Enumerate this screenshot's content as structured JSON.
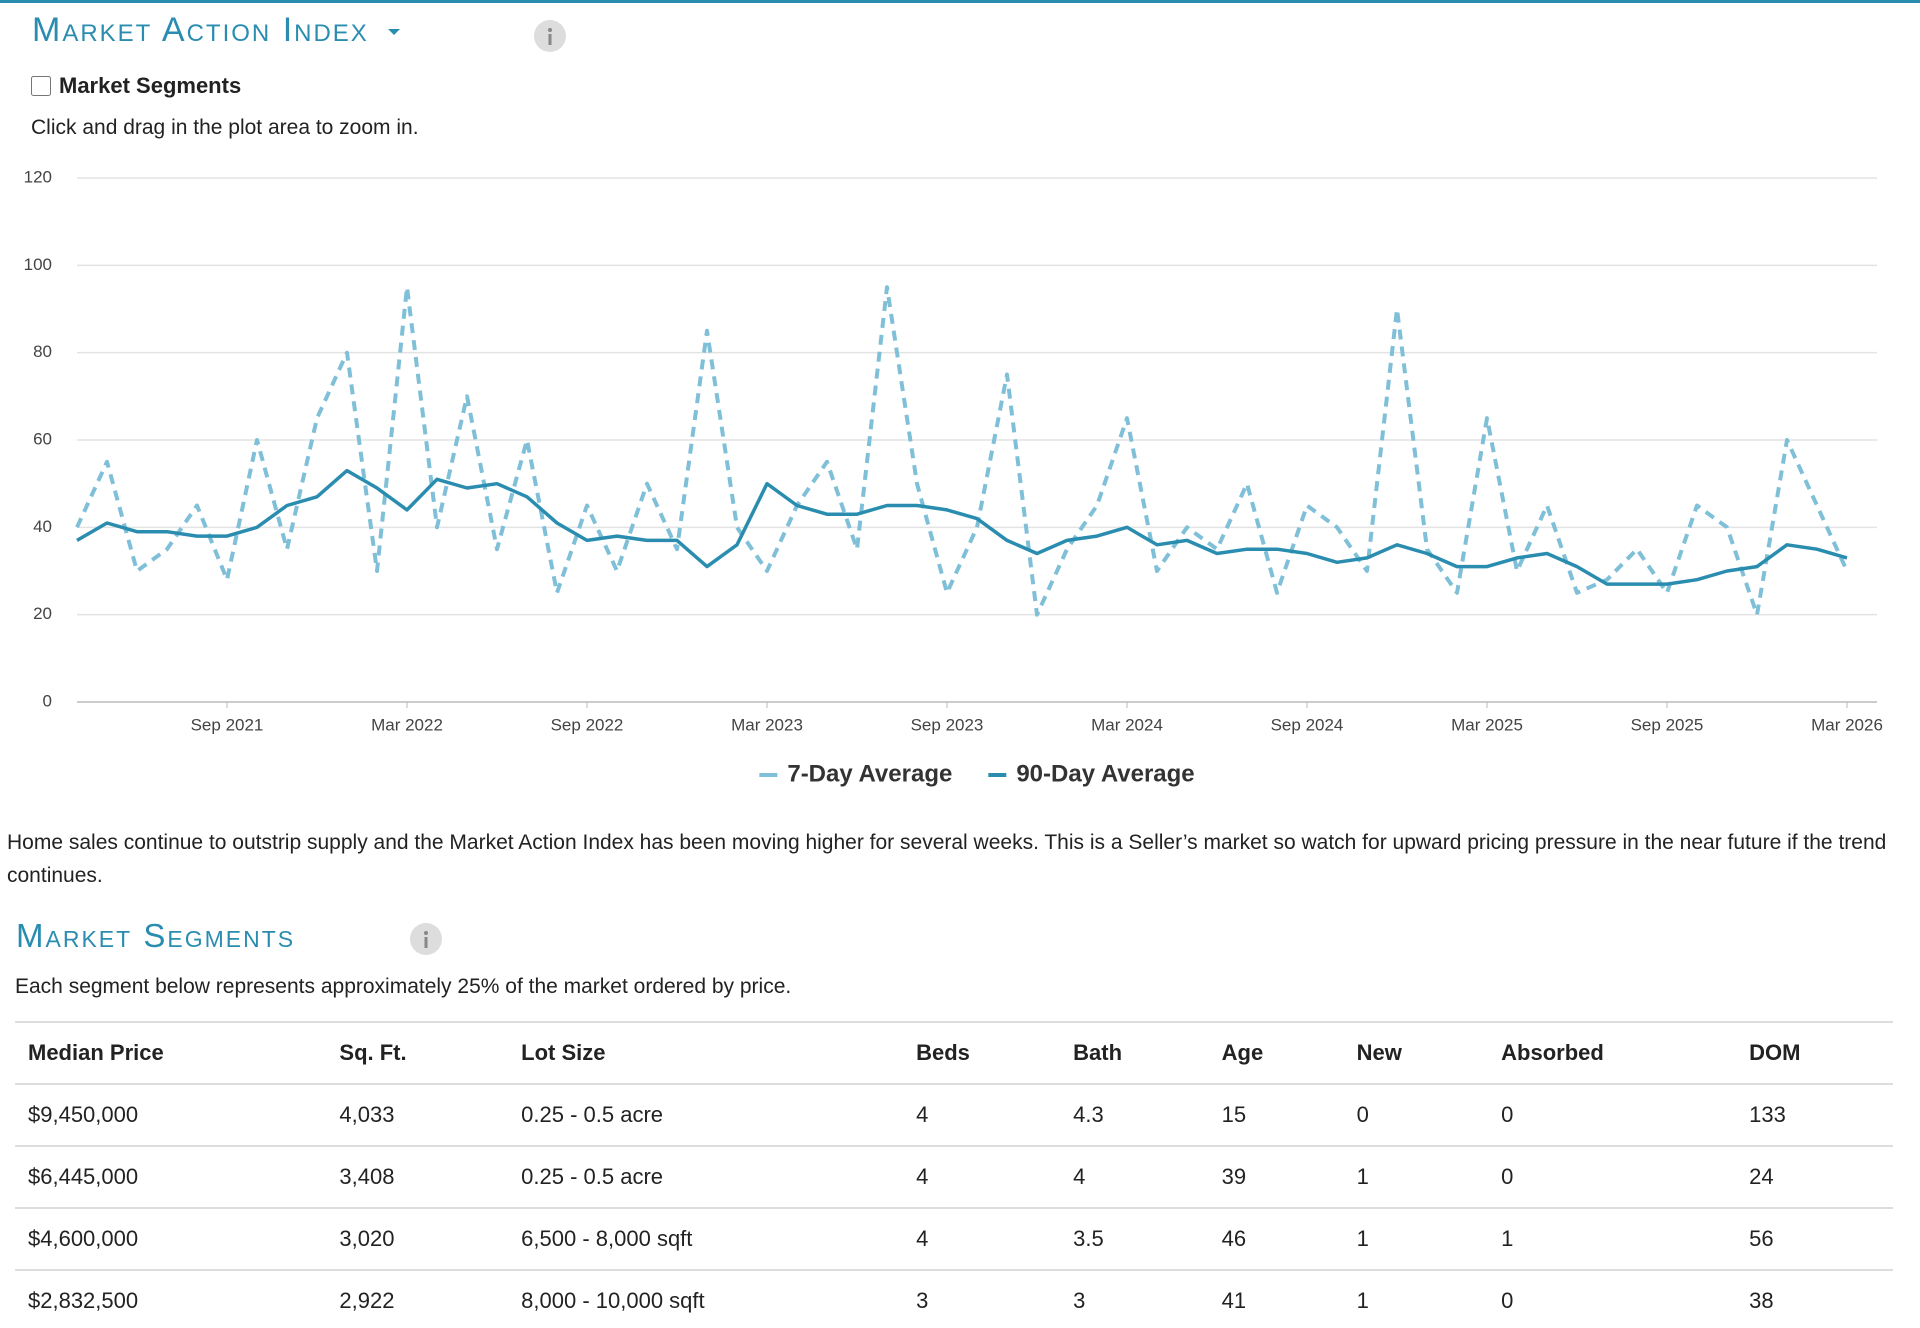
{
  "header": {
    "title": "Market Action Index"
  },
  "controls": {
    "checkbox_label": "Market Segments",
    "hint": "Click and drag in the plot area to zoom in."
  },
  "chart_data": {
    "type": "line",
    "x": [
      "2021-04",
      "2021-05",
      "2021-06",
      "2021-07",
      "2021-08",
      "2021-09",
      "2021-10",
      "2021-11",
      "2021-12",
      "2022-01",
      "2022-02",
      "2022-03",
      "2022-04",
      "2022-05",
      "2022-06",
      "2022-07",
      "2022-08",
      "2022-09",
      "2022-10",
      "2022-11",
      "2022-12",
      "2023-01",
      "2023-02",
      "2023-03",
      "2023-04",
      "2023-05",
      "2023-06",
      "2023-07",
      "2023-08",
      "2023-09",
      "2023-10",
      "2023-11",
      "2023-12",
      "2024-01",
      "2024-02",
      "2024-03",
      "2024-04",
      "2024-05",
      "2024-06",
      "2024-07",
      "2024-08",
      "2024-09",
      "2024-10",
      "2024-11",
      "2024-12",
      "2025-01",
      "2025-02",
      "2025-03",
      "2025-04",
      "2025-05",
      "2025-06",
      "2025-07",
      "2025-08",
      "2025-09",
      "2025-10",
      "2025-11",
      "2025-12",
      "2026-01",
      "2026-02",
      "2026-03"
    ],
    "series": [
      {
        "name": "7-Day Average",
        "color": "#7fc0d8",
        "dashed": true,
        "values": [
          40,
          55,
          30,
          35,
          45,
          28,
          60,
          35,
          65,
          80,
          30,
          95,
          40,
          70,
          35,
          60,
          25,
          45,
          30,
          50,
          35,
          85,
          40,
          30,
          45,
          55,
          35,
          95,
          50,
          25,
          40,
          75,
          20,
          35,
          45,
          65,
          30,
          40,
          35,
          50,
          25,
          45,
          40,
          30,
          90,
          35,
          25,
          65,
          30,
          45,
          25,
          28,
          35,
          25,
          45,
          40,
          20,
          60,
          45,
          30
        ]
      },
      {
        "name": "90-Day Average",
        "color": "#2a8db0",
        "dashed": false,
        "values": [
          37,
          41,
          39,
          39,
          38,
          38,
          40,
          45,
          47,
          53,
          49,
          44,
          51,
          49,
          50,
          47,
          41,
          37,
          38,
          37,
          37,
          31,
          36,
          50,
          45,
          43,
          43,
          45,
          45,
          44,
          42,
          37,
          34,
          37,
          38,
          40,
          36,
          37,
          34,
          35,
          35,
          34,
          32,
          33,
          36,
          34,
          31,
          31,
          33,
          34,
          31,
          27,
          27,
          27,
          28,
          30,
          31,
          36,
          35,
          33
        ]
      }
    ],
    "xlim": [
      "2021-04",
      "2026-04"
    ],
    "xticks": [
      {
        "value": "2021-09",
        "label": "Sep 2021"
      },
      {
        "value": "2022-03",
        "label": "Mar 2022"
      },
      {
        "value": "2022-09",
        "label": "Sep 2022"
      },
      {
        "value": "2023-03",
        "label": "Mar 2023"
      },
      {
        "value": "2023-09",
        "label": "Sep 2023"
      },
      {
        "value": "2024-03",
        "label": "Mar 2024"
      },
      {
        "value": "2024-09",
        "label": "Sep 2024"
      },
      {
        "value": "2025-03",
        "label": "Mar 2025"
      },
      {
        "value": "2025-09",
        "label": "Sep 2025"
      },
      {
        "value": "2026-03",
        "label": "Mar 2026"
      }
    ],
    "ylim": [
      0,
      120
    ],
    "yticks": [
      0,
      20,
      40,
      60,
      80,
      100,
      120
    ],
    "grid": true,
    "legend": "bottom"
  },
  "summary": "Home sales continue to outstrip supply and the Market Action Index has been moving higher for several weeks. This is a Seller’s market so watch for upward pricing pressure in the near future if the trend continues.",
  "segments": {
    "title": "Market Segments",
    "description": "Each segment below represents approximately 25% of the market ordered by price.",
    "table": {
      "columns": [
        "Median Price",
        "Sq. Ft.",
        "Lot Size",
        "Beds",
        "Bath",
        "Age",
        "New",
        "Absorbed",
        "DOM"
      ],
      "rows": [
        [
          "$9,450,000",
          "4,033",
          "0.25 - 0.5 acre",
          "4",
          "4.3",
          "15",
          "0",
          "0",
          "133"
        ],
        [
          "$6,445,000",
          "3,408",
          "0.25 - 0.5 acre",
          "4",
          "4",
          "39",
          "1",
          "0",
          "24"
        ],
        [
          "$4,600,000",
          "3,020",
          "6,500 - 8,000 sqft",
          "4",
          "3.5",
          "46",
          "1",
          "1",
          "56"
        ],
        [
          "$2,832,500",
          "2,922",
          "8,000 - 10,000 sqft",
          "3",
          "3",
          "41",
          "1",
          "0",
          "38"
        ]
      ]
    }
  }
}
